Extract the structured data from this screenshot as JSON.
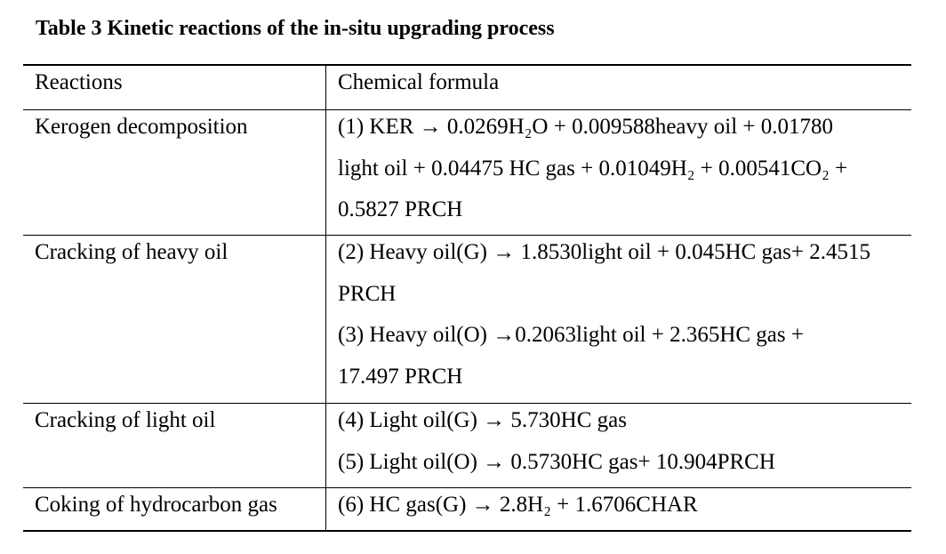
{
  "title": "Table 3 Kinetic reactions of the in-situ upgrading process",
  "headers": {
    "reactions": "Reactions",
    "formula": "Chemical formula"
  },
  "rows": [
    {
      "reaction": "Kerogen decomposition",
      "lines": [
        "(1) KER → 0.0269H₂O + 0.009588heavy oil + 0.01780",
        "light oil + 0.04475 HC gas + 0.01049H₂ + 0.00541CO₂ +",
        "0.5827 PRCH"
      ]
    },
    {
      "reaction": "Cracking of heavy oil",
      "lines": [
        "(2) Heavy oil(G) → 1.8530light oil + 0.045HC gas+ 2.4515",
        "PRCH",
        "(3) Heavy oil(O) →0.2063light oil + 2.365HC gas +",
        "17.497 PRCH"
      ]
    },
    {
      "reaction": "Cracking of light oil",
      "lines": [
        "(4) Light oil(G) → 5.730HC gas",
        "(5) Light oil(O) → 0.5730HC gas+ 10.904PRCH"
      ]
    },
    {
      "reaction": "Coking of hydrocarbon gas",
      "lines": [
        "(6) HC gas(G) → 2.8H₂ + 1.6706CHAR"
      ]
    }
  ]
}
